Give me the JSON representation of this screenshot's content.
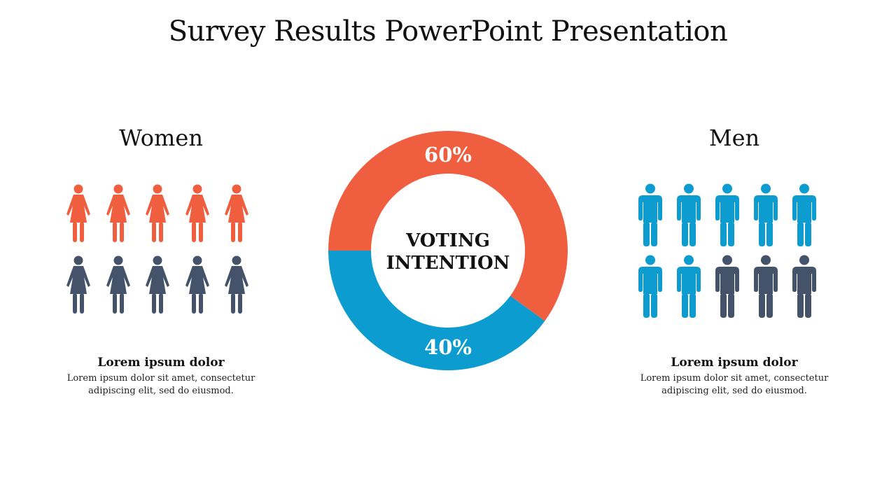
{
  "slide": {
    "title": "Survey Results PowerPoint Presentation"
  },
  "colors": {
    "women_accent": "#F05E40",
    "men_accent": "#0D9CCF",
    "neutral": "#44526A"
  },
  "panels": {
    "women": {
      "title": "Women",
      "icon": "female-person-icon",
      "total_icons": 10,
      "highlighted_icons": 5,
      "caption_heading": "Lorem ipsum dolor",
      "caption_text": "Lorem ipsum dolor sit amet, consectetur\nadipiscing elit, sed do eiusmod."
    },
    "men": {
      "title": "Men",
      "icon": "male-person-icon",
      "total_icons": 10,
      "highlighted_icons": 7,
      "caption_heading": "Lorem ipsum dolor",
      "caption_text": "Lorem ipsum dolor sit amet, consectetur\nadipiscing elit, sed do eiusmod."
    }
  },
  "chart_data": {
    "type": "pie",
    "donut": true,
    "center_label_line1": "VOTING",
    "center_label_line2": "INTENTION",
    "slices": [
      {
        "label": "60%",
        "value": 60,
        "color": "#F05E40"
      },
      {
        "label": "40%",
        "value": 40,
        "color": "#0D9CCF"
      }
    ]
  }
}
